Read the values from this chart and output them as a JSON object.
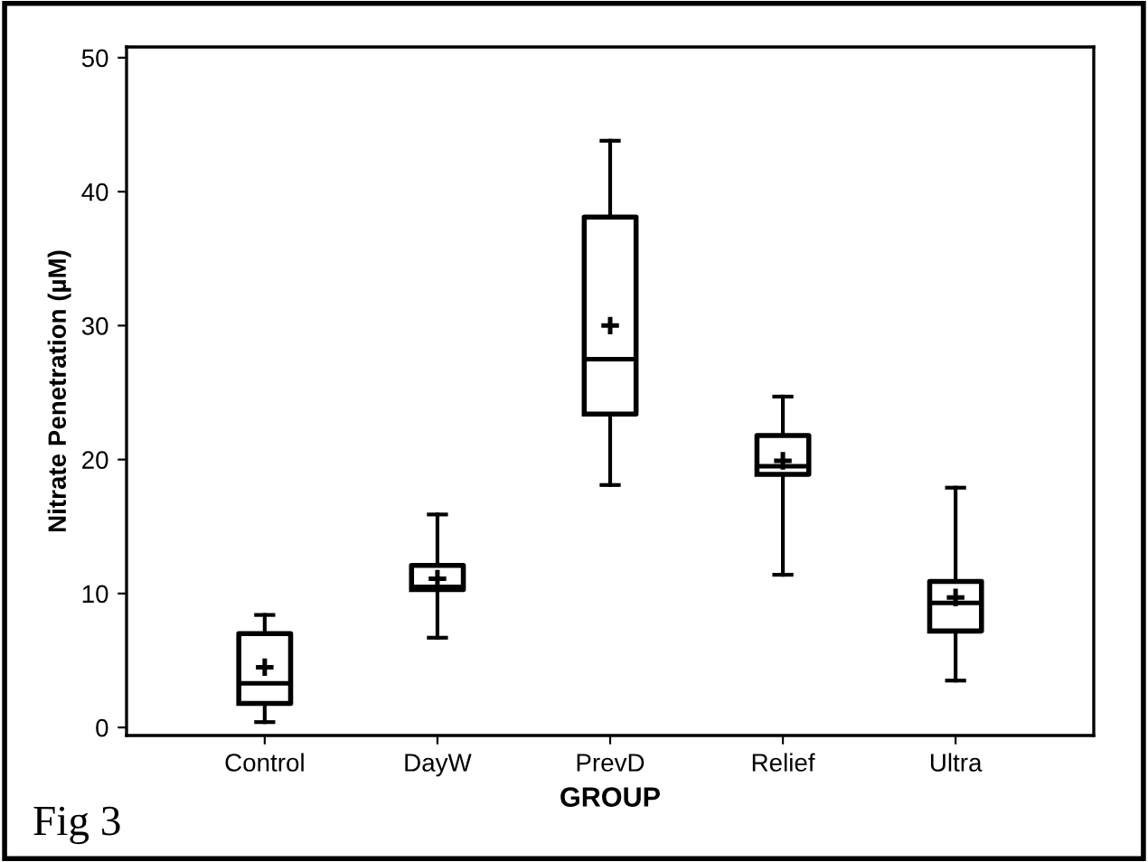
{
  "chart_data": {
    "type": "box",
    "xlabel": "GROUP",
    "ylabel": "Nitrate Penetration (µM)",
    "categories": [
      "Control",
      "DayW",
      "PrevD",
      "Relief",
      "Ultra"
    ],
    "boxes": [
      {
        "low": 0.4,
        "q1": 1.8,
        "median": 3.3,
        "q3": 7.0,
        "high": 8.4,
        "mean": 4.5
      },
      {
        "low": 6.7,
        "q1": 10.3,
        "median": 10.5,
        "q3": 12.1,
        "high": 15.9,
        "mean": 11.1
      },
      {
        "low": 18.1,
        "q1": 23.4,
        "median": 27.5,
        "q3": 38.1,
        "high": 43.8,
        "mean": 30.0
      },
      {
        "low": 11.4,
        "q1": 18.9,
        "median": 19.5,
        "q3": 21.8,
        "high": 24.7,
        "mean": 19.9
      },
      {
        "low": 3.5,
        "q1": 7.2,
        "median": 9.3,
        "q3": 10.9,
        "high": 17.9,
        "mean": 9.7
      }
    ],
    "ylim": [
      -0.6,
      50.8
    ],
    "yticks": [
      0,
      10,
      20,
      30,
      40,
      50
    ],
    "grid": false,
    "annotations": [
      "Fig 3"
    ]
  }
}
